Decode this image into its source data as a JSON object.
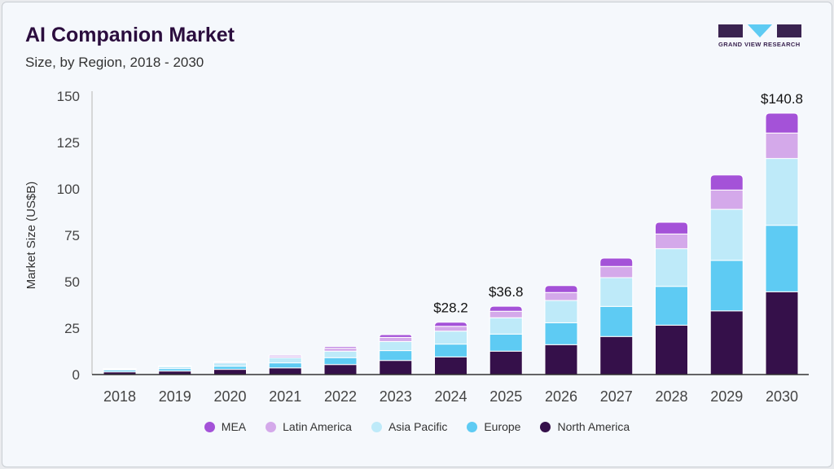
{
  "header": {
    "title": "AI Companion Market",
    "subtitle": "Size, by Region, 2018 - 2030",
    "logo_text": "GRAND VIEW RESEARCH"
  },
  "chart_data": {
    "type": "bar",
    "stacked": true,
    "ylabel": "Market Size (US$B)",
    "xlabel": "",
    "ylim": [
      0,
      150
    ],
    "yticks": [
      0,
      25,
      50,
      75,
      100,
      125,
      150
    ],
    "grid": false,
    "legend_position": "bottom",
    "categories": [
      "2018",
      "2019",
      "2020",
      "2021",
      "2022",
      "2023",
      "2024",
      "2025",
      "2026",
      "2027",
      "2028",
      "2029",
      "2030"
    ],
    "series": [
      {
        "name": "North America",
        "color": "#35104a",
        "values": [
          1.45,
          1.9,
          2.8,
          3.6,
          5.4,
          7.6,
          9.5,
          12.6,
          16.1,
          20.5,
          26.6,
          34.3,
          44.6
        ]
      },
      {
        "name": "Europe",
        "color": "#5ecbf3",
        "values": [
          0.95,
          1.3,
          1.7,
          2.7,
          3.7,
          5.3,
          6.9,
          9.2,
          11.8,
          16.2,
          20.9,
          27.2,
          35.8
        ]
      },
      {
        "name": "Asia Pacific",
        "color": "#beeaf9",
        "values": [
          0.6,
          1.1,
          1.8,
          2.8,
          3.5,
          4.9,
          7.0,
          8.8,
          12.0,
          15.5,
          20.3,
          27.5,
          36.0
        ]
      },
      {
        "name": "Latin America",
        "color": "#d4a9ea",
        "values": [
          0.2,
          0.3,
          0.5,
          0.9,
          1.6,
          2.2,
          2.6,
          3.5,
          4.3,
          6.0,
          7.9,
          10.4,
          13.7
        ]
      },
      {
        "name": "MEA",
        "color": "#a452d8",
        "values": [
          0.1,
          0.1,
          0.2,
          0.5,
          0.8,
          1.5,
          2.2,
          2.7,
          3.7,
          4.5,
          6.3,
          8.1,
          10.7
        ]
      }
    ],
    "annotations": [
      {
        "category": "2024",
        "label": "$28.2"
      },
      {
        "category": "2025",
        "label": "$36.8"
      },
      {
        "category": "2030",
        "label": "$140.8"
      }
    ],
    "legend_order": [
      "MEA",
      "Latin America",
      "Asia Pacific",
      "Europe",
      "North America"
    ]
  }
}
